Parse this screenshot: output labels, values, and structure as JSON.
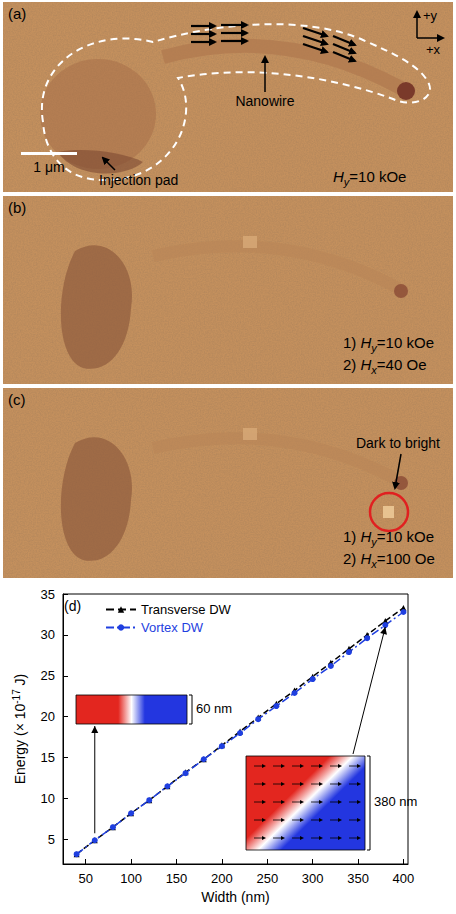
{
  "images": [
    {
      "label": "(a)",
      "nanowire": "Nanowire",
      "injection_pad": "Injection pad",
      "scale_bar": "1 μm",
      "axis_y": "+y",
      "axis_x": "+x",
      "fields": [
        {
          "symbol": "H",
          "subscript": "y",
          "value": "=10 kOe"
        }
      ]
    },
    {
      "label": "(b)",
      "fields": [
        {
          "step": "1)",
          "symbol": "H",
          "subscript": "y",
          "value": "=10 kOe"
        },
        {
          "step": "2)",
          "symbol": "H",
          "subscript": "x",
          "value": "=40 Oe"
        }
      ]
    },
    {
      "label": "(c)",
      "note": "Dark to bright",
      "fields": [
        {
          "step": "1)",
          "symbol": "H",
          "subscript": "y",
          "value": "=10 kOe"
        },
        {
          "step": "2)",
          "symbol": "H",
          "subscript": "x",
          "value": "=100 Oe"
        }
      ]
    }
  ],
  "chart_data": {
    "label": "(d)",
    "type": "line",
    "x_label": "Width (nm)",
    "y_label": {
      "text": "Energy (× 10",
      "superscript": "-17",
      "after": " J)"
    },
    "x": [
      40,
      60,
      80,
      100,
      120,
      140,
      160,
      180,
      200,
      220,
      240,
      260,
      280,
      300,
      320,
      340,
      360,
      380,
      400
    ],
    "xlim": [
      25,
      405
    ],
    "xticks": [
      50,
      100,
      150,
      200,
      250,
      300,
      350,
      400
    ],
    "ylim": [
      2,
      35
    ],
    "yticks": [
      5,
      10,
      15,
      20,
      25,
      30,
      35
    ],
    "grid": false,
    "legend": "upper left",
    "series": [
      {
        "name": "Transverse DW",
        "color": "#000000",
        "marker": "triangle",
        "line_style": "dashed",
        "values": [
          3.2,
          4.9,
          6.5,
          8.2,
          9.8,
          11.5,
          13.2,
          14.8,
          16.5,
          18.2,
          19.9,
          21.6,
          23.2,
          24.9,
          26.6,
          28.3,
          30.0,
          31.7,
          33.3
        ]
      },
      {
        "name": "Vortex DW",
        "color": "#1f3fe0",
        "marker": "circle",
        "line_style": "dashdot",
        "values": [
          3.2,
          4.9,
          6.5,
          8.2,
          9.8,
          11.5,
          13.1,
          14.8,
          16.4,
          18.0,
          19.7,
          21.3,
          22.9,
          24.6,
          26.2,
          27.9,
          29.6,
          31.2,
          32.8
        ]
      }
    ],
    "annotations": [
      {
        "text": "60 nm",
        "x": 60
      },
      {
        "text": "380 nm",
        "x": 380
      }
    ]
  }
}
